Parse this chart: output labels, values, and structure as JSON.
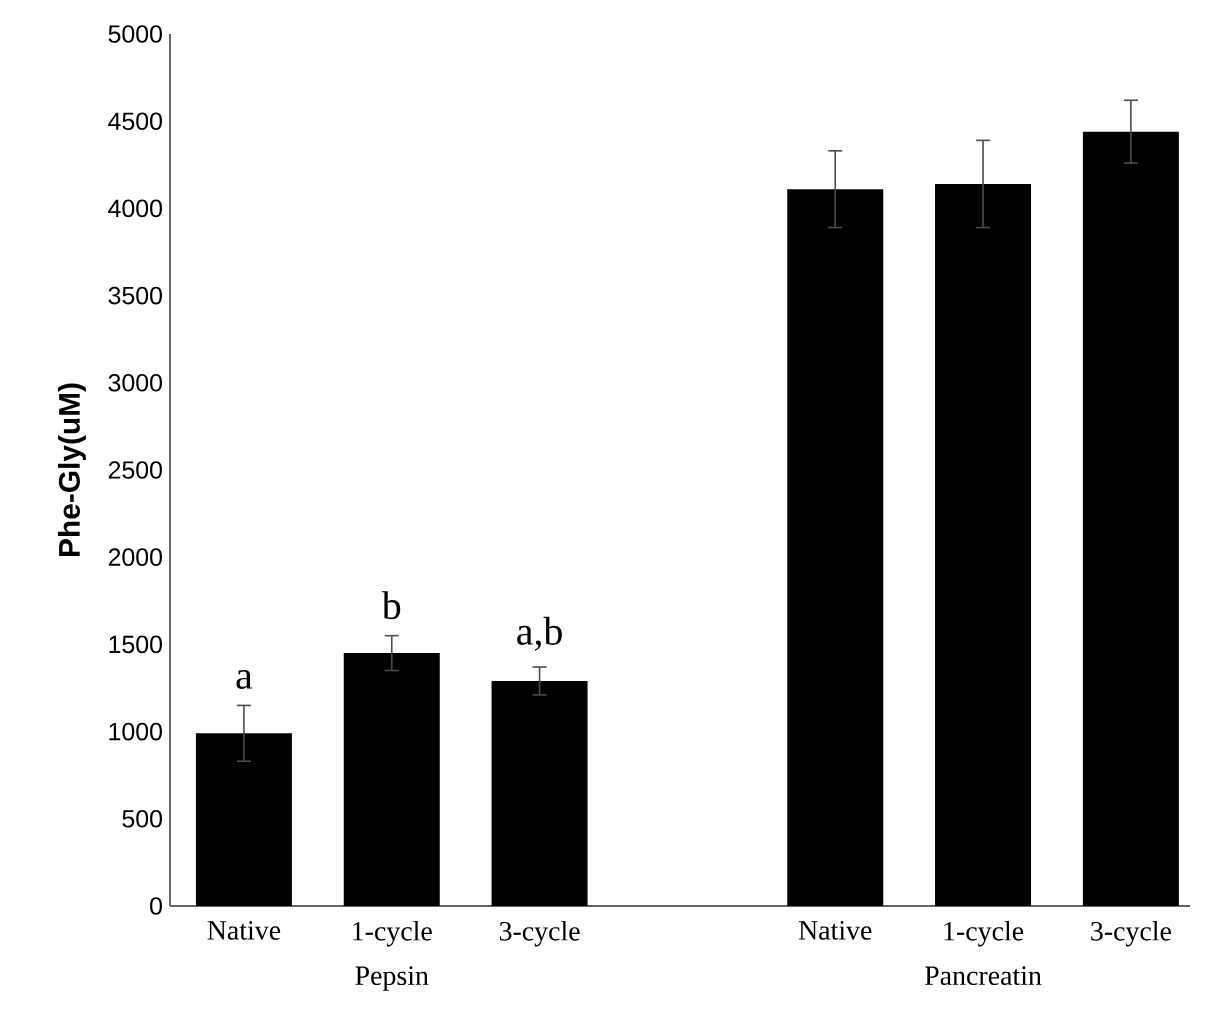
{
  "chart_data": {
    "type": "bar",
    "ylabel": "Phe-Gly(uM)",
    "categories": [
      "Native",
      "1-cycle",
      "3-cycle",
      null,
      "Native",
      "1-cycle",
      "3-cycle"
    ],
    "values": [
      990,
      1450,
      1290,
      null,
      4110,
      4140,
      4440
    ],
    "errors": [
      160,
      100,
      80,
      null,
      220,
      250,
      180
    ],
    "color": "#000000",
    "ylim": [
      0,
      5000
    ],
    "yticks": [
      0,
      500,
      1000,
      1500,
      2000,
      2500,
      3000,
      3500,
      4000,
      4500,
      5000
    ],
    "annotations": [
      "a",
      "b",
      "a,b",
      "Pepsin",
      "Pancreatin"
    ]
  }
}
